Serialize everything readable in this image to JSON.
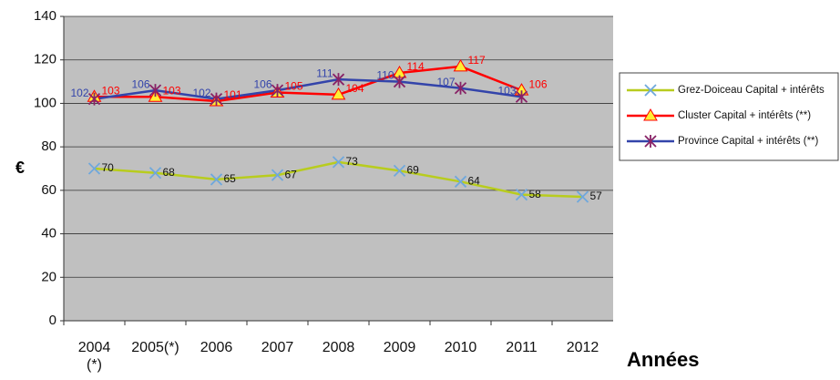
{
  "chart_data": {
    "type": "line",
    "categories": [
      "2004 (*)",
      "2005(*)",
      "2006",
      "2007",
      "2008",
      "2009",
      "2010",
      "2011",
      "2012"
    ],
    "series": [
      {
        "name": "Grez-Doiceau Capital + intérêts",
        "color": "#b8cc1e",
        "marker_color": "#6fa8dc",
        "label_color": "#111111",
        "values": [
          70,
          68,
          65,
          67,
          73,
          69,
          64,
          58,
          57
        ]
      },
      {
        "name": "Cluster Capital + intérêts (**)",
        "color": "#ff0000",
        "marker_color": "#ffee33",
        "label_color": "#ff0000",
        "values": [
          103,
          103,
          101,
          105,
          104,
          114,
          117,
          106,
          null
        ]
      },
      {
        "name": "Province Capital + intérêts (**)",
        "color": "#3344aa",
        "marker_color": "#882266",
        "label_color": "#3344aa",
        "values": [
          102,
          106,
          102,
          106,
          111,
          110,
          107,
          103,
          null
        ]
      }
    ],
    "ylabel": "€",
    "xlabel": "Années",
    "ylim": [
      0,
      140
    ],
    "yticks": [
      0,
      20,
      40,
      60,
      80,
      100,
      120,
      140
    ],
    "grid": true
  }
}
